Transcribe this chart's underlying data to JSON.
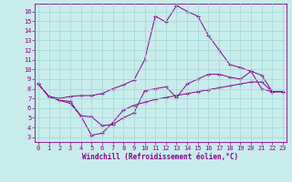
{
  "xlabel": "Windchill (Refroidissement éolien,°C)",
  "background_color": "#c8ecec",
  "grid_color": "#a0d4d4",
  "line_color": "#880088",
  "x_ticks": [
    0,
    1,
    2,
    3,
    4,
    5,
    6,
    7,
    8,
    9,
    10,
    11,
    12,
    13,
    14,
    15,
    16,
    17,
    18,
    19,
    20,
    21,
    22,
    23
  ],
  "y_ticks": [
    3,
    4,
    5,
    6,
    7,
    8,
    9,
    10,
    11,
    12,
    13,
    14,
    15,
    16
  ],
  "ylim_min": 2.5,
  "ylim_max": 16.8,
  "xlim_min": -0.3,
  "xlim_max": 23.3,
  "curve1_x": [
    0,
    1,
    2,
    3,
    4,
    5,
    6,
    7,
    8,
    9,
    10,
    11,
    12,
    13,
    14,
    15,
    16,
    17,
    18,
    19,
    20,
    21,
    22,
    23
  ],
  "curve1_y": [
    8.5,
    7.2,
    7.0,
    7.2,
    7.3,
    7.3,
    7.5,
    8.0,
    8.4,
    8.9,
    11.0,
    15.5,
    14.9,
    16.6,
    16.0,
    15.5,
    13.5,
    12.0,
    10.5,
    10.2,
    9.8,
    9.4,
    7.7,
    7.7
  ],
  "curve2_x": [
    0,
    1,
    2,
    3,
    4,
    5,
    6,
    7,
    8,
    9,
    10,
    11,
    12,
    13,
    14,
    15,
    16,
    17,
    18,
    19,
    20,
    21,
    22,
    23
  ],
  "curve2_y": [
    8.5,
    7.2,
    6.8,
    6.7,
    5.2,
    5.1,
    4.2,
    4.3,
    5.0,
    5.5,
    7.8,
    8.0,
    8.2,
    7.1,
    8.5,
    9.0,
    9.5,
    9.5,
    9.2,
    9.0,
    9.8,
    8.0,
    7.7,
    7.7
  ],
  "curve3_x": [
    0,
    1,
    2,
    3,
    4,
    5,
    6,
    7,
    8,
    9,
    10,
    11,
    12,
    13,
    14,
    15,
    16,
    17,
    18,
    19,
    20,
    21,
    22,
    23
  ],
  "curve3_y": [
    8.5,
    7.2,
    6.8,
    6.5,
    5.2,
    3.2,
    3.4,
    4.5,
    5.8,
    6.3,
    6.6,
    6.9,
    7.1,
    7.3,
    7.5,
    7.7,
    7.9,
    8.1,
    8.3,
    8.5,
    8.7,
    8.7,
    7.7,
    7.7
  ],
  "tick_fontsize": 5,
  "xlabel_fontsize": 5.5
}
